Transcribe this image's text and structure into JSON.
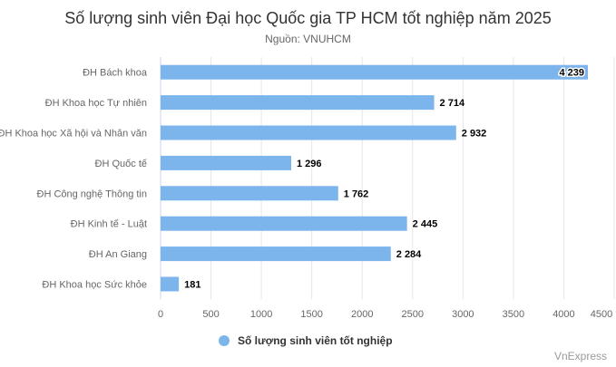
{
  "chart_data": {
    "type": "bar",
    "orientation": "horizontal",
    "title": "Số lượng sinh viên Đại học Quốc gia TP HCM tốt nghiệp năm 2025",
    "subtitle": "Nguồn: VNUHCM",
    "categories": [
      "ĐH Bách khoa",
      "ĐH Khoa học Tự nhiên",
      "ĐH Khoa học Xã hội và Nhân văn",
      "ĐH Quốc tế",
      "ĐH Công nghệ Thông tin",
      "ĐH Kinh tế - Luật",
      "ĐH An Giang",
      "ĐH Khoa học Sức khỏe"
    ],
    "series": [
      {
        "name": "Số lượng sinh viên tốt nghiệp",
        "values": [
          4239,
          2714,
          2932,
          1296,
          1762,
          2445,
          2284,
          181
        ],
        "color": "#7cb5ec"
      }
    ],
    "data_labels": [
      "4 239",
      "2 714",
      "2 932",
      "1 296",
      "1 762",
      "2 445",
      "2 284",
      "181"
    ],
    "xlim": [
      0,
      4500
    ],
    "ticks": [
      0,
      500,
      1000,
      1500,
      2000,
      2500,
      3000,
      3500,
      4000,
      4500
    ],
    "grid": true,
    "legend": "bottom"
  },
  "credit": "VnExpress"
}
